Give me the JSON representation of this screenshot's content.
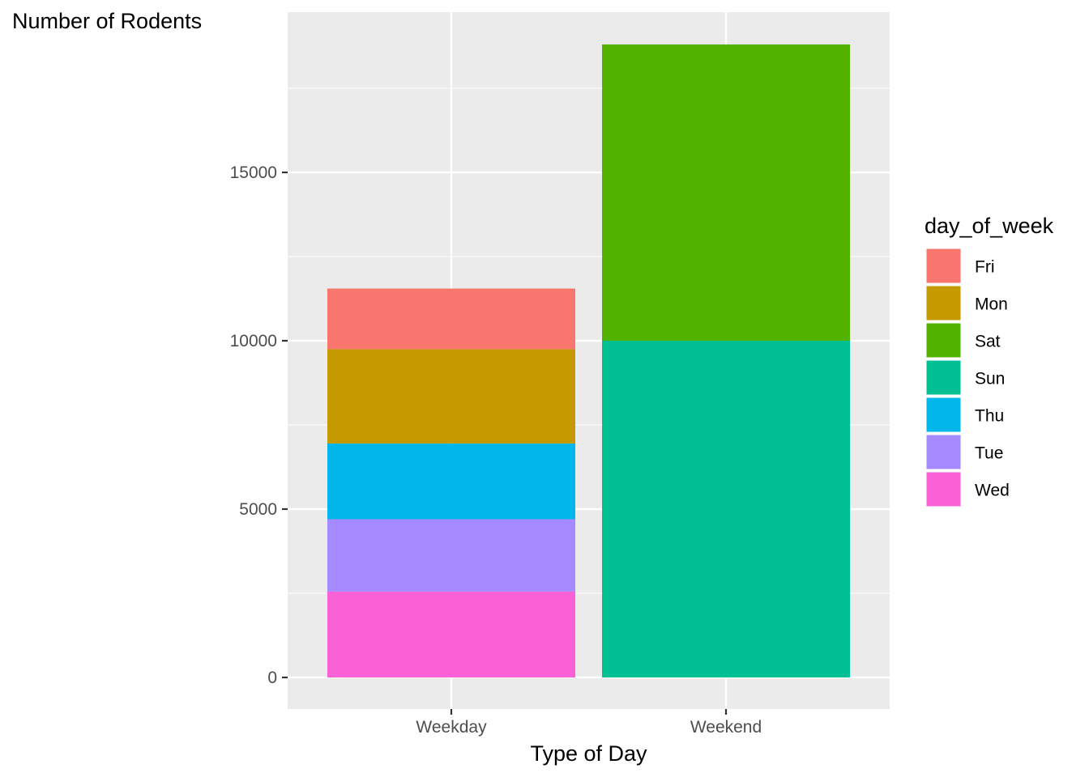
{
  "chart_data": {
    "type": "bar",
    "stacked": true,
    "title": "",
    "xlabel": "Type of Day",
    "ylabel": "Number of Rodents",
    "categories": [
      "Weekday",
      "Weekend"
    ],
    "ylim": [
      -900,
      19700
    ],
    "yticks": [
      0,
      5000,
      10000,
      15000
    ],
    "grid": true,
    "legend": {
      "title": "day_of_week",
      "position": "right",
      "entries": [
        "Fri",
        "Mon",
        "Sat",
        "Sun",
        "Thu",
        "Tue",
        "Wed"
      ]
    },
    "series": [
      {
        "name": "Fri",
        "color": "#F8766D",
        "values": [
          1800,
          0
        ]
      },
      {
        "name": "Mon",
        "color": "#C49A00",
        "values": [
          2800,
          0
        ]
      },
      {
        "name": "Sat",
        "color": "#53B400",
        "values": [
          0,
          8800
        ]
      },
      {
        "name": "Sun",
        "color": "#00C094",
        "values": [
          0,
          10000
        ]
      },
      {
        "name": "Thu",
        "color": "#00B6EB",
        "values": [
          2250,
          0
        ]
      },
      {
        "name": "Tue",
        "color": "#A58AFF",
        "values": [
          2150,
          0
        ]
      },
      {
        "name": "Wed",
        "color": "#FB61D7",
        "values": [
          2550,
          0
        ]
      }
    ]
  }
}
